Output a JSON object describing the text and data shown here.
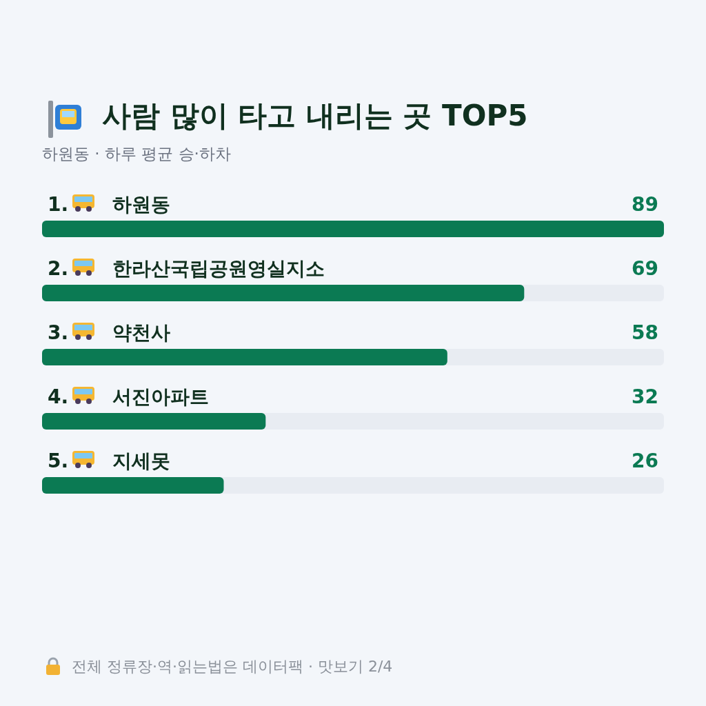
{
  "chart_data": {
    "type": "bar",
    "orientation": "horizontal",
    "title": "사람 많이 타고 내리는 곳 TOP5",
    "subtitle": "하원동 · 하루 평균 승·하차",
    "categories": [
      "1. 하원동",
      "2. 한라산국립공원영실지소",
      "3. 약천사",
      "4. 서진아파트",
      "5. 지세못"
    ],
    "values": [
      89,
      69,
      58,
      32,
      26
    ],
    "color": "#0b7a53",
    "xlim": [
      0,
      89
    ],
    "tick_labels": "y",
    "data_labels": true,
    "annotations": [
      "전체 정류장·역·읽는법은 데이터팩 · 맛보기 2/4"
    ]
  }
}
